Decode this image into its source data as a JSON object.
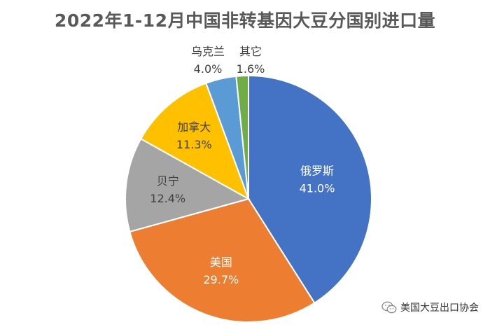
{
  "chart_data": {
    "type": "pie",
    "title": "2022年1-12月中国非转基因大豆分国别进口量",
    "slices": [
      {
        "name": "俄罗斯",
        "value": 41.0,
        "label": "41.0%",
        "color": "#4472C4"
      },
      {
        "name": "美国",
        "value": 29.7,
        "label": "29.7%",
        "color": "#ED7D31"
      },
      {
        "name": "贝宁",
        "value": 12.4,
        "label": "12.4%",
        "color": "#A5A5A5"
      },
      {
        "name": "加拿大",
        "value": 11.3,
        "label": "11.3%",
        "color": "#FFC000"
      },
      {
        "name": "乌克兰",
        "value": 4.0,
        "label": "4.0%",
        "color": "#5B9BD5"
      },
      {
        "name": "其它",
        "value": 1.6,
        "label": "1.6%",
        "color": "#70AD47"
      }
    ]
  },
  "watermark": {
    "text": "美国大豆出口协会",
    "icon": "wechat-icon"
  }
}
